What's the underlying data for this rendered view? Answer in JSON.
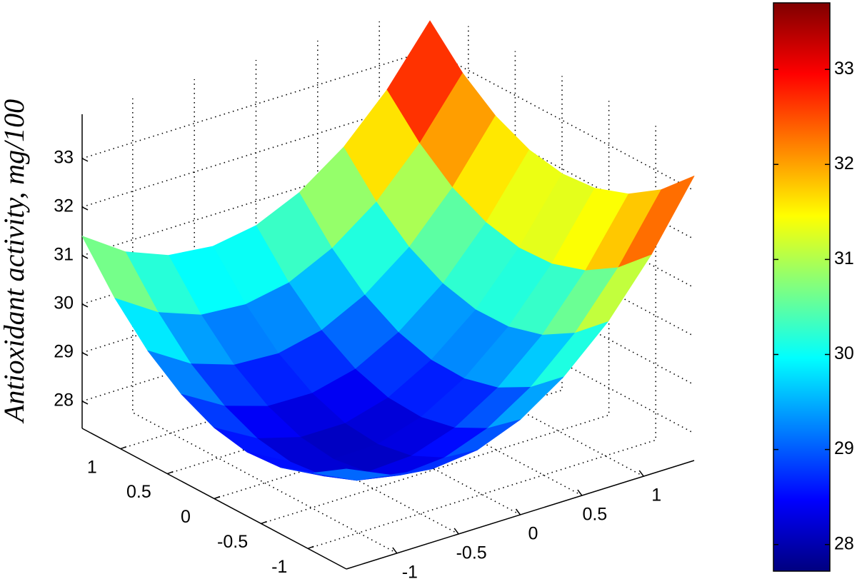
{
  "chart_data": {
    "type": "surface",
    "zlabel": "Antioxidant activity, mg/100",
    "x": [
      -1.41,
      -1.06,
      -0.71,
      -0.35,
      0,
      0.35,
      0.71,
      1.06,
      1.41
    ],
    "y": [
      -1.41,
      -1.06,
      -0.71,
      -0.35,
      0,
      0.35,
      0.71,
      1.06,
      1.41
    ],
    "z": [
      [
        29.5,
        29.06,
        28.81,
        28.76,
        28.9,
        29.23,
        29.76,
        30.48,
        31.4
      ],
      [
        29.1,
        28.63,
        28.36,
        28.28,
        28.4,
        28.71,
        29.21,
        29.91,
        30.8
      ],
      [
        28.95,
        28.46,
        28.16,
        28.06,
        28.15,
        28.43,
        28.91,
        29.58,
        30.45
      ],
      [
        29.05,
        28.53,
        28.21,
        28.08,
        28.15,
        28.41,
        28.86,
        29.51,
        30.35
      ],
      [
        29.4,
        28.86,
        28.51,
        28.36,
        28.4,
        28.63,
        29.06,
        29.68,
        30.5
      ],
      [
        30.0,
        29.43,
        29.06,
        28.88,
        28.9,
        29.11,
        29.51,
        30.11,
        30.9
      ],
      [
        30.85,
        30.26,
        29.86,
        29.66,
        29.65,
        29.83,
        30.21,
        30.78,
        31.55
      ],
      [
        31.95,
        31.33,
        30.91,
        30.68,
        30.65,
        30.81,
        31.16,
        31.71,
        32.45
      ],
      [
        33.3,
        32.66,
        32.21,
        31.96,
        31.9,
        32.03,
        32.36,
        32.88,
        33.6
      ]
    ],
    "xlim": [
      -1.41,
      1.41
    ],
    "ylim": [
      -1.41,
      1.41
    ],
    "zlim": [
      27.44,
      33.91
    ],
    "xticks": [
      -1,
      -0.5,
      0,
      0.5,
      1
    ],
    "yticks": [
      -1,
      -0.5,
      0,
      0.5,
      1
    ],
    "zticks": [
      28,
      29,
      30,
      31,
      32,
      33
    ],
    "grid": true,
    "colormap": "jet",
    "colorbar": {
      "clim": [
        27.72,
        33.7
      ],
      "ticks": [
        28,
        29,
        30,
        31,
        32,
        33
      ]
    }
  }
}
